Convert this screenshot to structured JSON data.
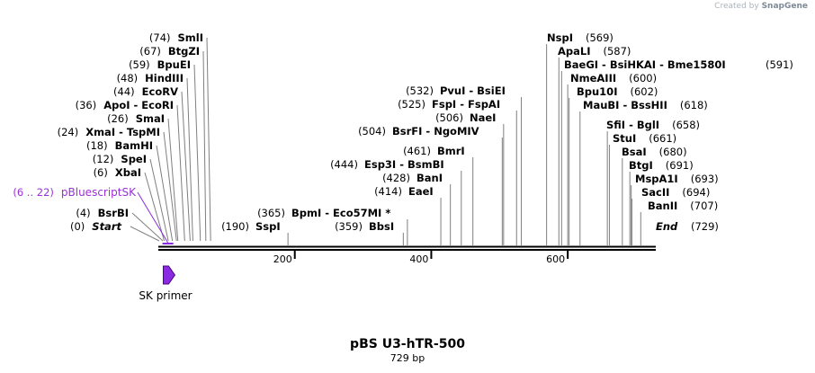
{
  "credit": {
    "prefix": "Created by",
    "brand": "SnapGene"
  },
  "plasmid": {
    "name": "pBS U3-hTR-500",
    "length_label": "729 bp",
    "length": 729
  },
  "colors": {
    "feature": "#8a2be2",
    "feature_label": "#9b30d9",
    "line": "#000000",
    "leader": "#7f7f7f"
  },
  "ticks": [
    {
      "pos": 200,
      "label": "200"
    },
    {
      "pos": 400,
      "label": "400"
    },
    {
      "pos": 600,
      "label": "600"
    }
  ],
  "left_sites": [
    {
      "pos": 0,
      "pos_label": "(0)",
      "name": "Start",
      "italic": true
    },
    {
      "pos": 4,
      "pos_label": "(4)",
      "name": "BsrBI"
    },
    {
      "pos": 6,
      "pos_label": "(6)",
      "name": "XbaI"
    },
    {
      "pos": 12,
      "pos_label": "(12)",
      "name": "SpeI"
    },
    {
      "pos": 18,
      "pos_label": "(18)",
      "name": "BamHI"
    },
    {
      "pos": 24,
      "pos_label": "(24)",
      "name": "XmaI  -  TspMI"
    },
    {
      "pos": 26,
      "pos_label": "(26)",
      "name": "SmaI"
    },
    {
      "pos": 36,
      "pos_label": "(36)",
      "name": "ApoI  -  EcoRI"
    },
    {
      "pos": 44,
      "pos_label": "(44)",
      "name": "EcoRV"
    },
    {
      "pos": 48,
      "pos_label": "(48)",
      "name": "HindIII"
    },
    {
      "pos": 59,
      "pos_label": "(59)",
      "name": "BpuEI"
    },
    {
      "pos": 67,
      "pos_label": "(67)",
      "name": "BtgZI"
    },
    {
      "pos": 74,
      "pos_label": "(74)",
      "name": "SmlI"
    }
  ],
  "feature_label": {
    "pos_label": "(6 .. 22)",
    "name": "pBluescriptSK",
    "start": 6,
    "end": 22
  },
  "primer": {
    "name": "SK primer",
    "start": 2,
    "end": 19
  },
  "mid_sites": [
    {
      "pos": 190,
      "pos_label": "(190)",
      "name": "SspI"
    },
    {
      "pos": 365,
      "pos_label": "(365)",
      "name": "BpmI  -  Eco57MI *"
    },
    {
      "pos": 359,
      "pos_label": "(359)",
      "name": "BbsI"
    },
    {
      "pos": 414,
      "pos_label": "(414)",
      "name": "EaeI"
    },
    {
      "pos": 428,
      "pos_label": "(428)",
      "name": "BanI"
    },
    {
      "pos": 444,
      "pos_label": "(444)",
      "name": "Esp3I  -  BsmBI"
    },
    {
      "pos": 461,
      "pos_label": "(461)",
      "name": "BmrI"
    },
    {
      "pos": 504,
      "pos_label": "(504)",
      "name": "BsrFI  -  NgoMIV"
    },
    {
      "pos": 506,
      "pos_label": "(506)",
      "name": "NaeI"
    },
    {
      "pos": 525,
      "pos_label": "(525)",
      "name": "FspI  -  FspAI"
    },
    {
      "pos": 532,
      "pos_label": "(532)",
      "name": "PvuI  -  BsiEI"
    }
  ],
  "right_sites": [
    {
      "pos": 569,
      "pos_label": "(569)",
      "name": "NspI"
    },
    {
      "pos": 587,
      "pos_label": "(587)",
      "name": "ApaLI"
    },
    {
      "pos": 591,
      "pos_label": "(591)",
      "name": "BaeGI  -  BsiHKAI  -  Bme1580I"
    },
    {
      "pos": 600,
      "pos_label": "(600)",
      "name": "NmeAIII"
    },
    {
      "pos": 602,
      "pos_label": "(602)",
      "name": "Bpu10I"
    },
    {
      "pos": 618,
      "pos_label": "(618)",
      "name": "MauBI  -  BssHII"
    },
    {
      "pos": 658,
      "pos_label": "(658)",
      "name": "SfiI  -  BglI"
    },
    {
      "pos": 661,
      "pos_label": "(661)",
      "name": "StuI"
    },
    {
      "pos": 680,
      "pos_label": "(680)",
      "name": "BsaI"
    },
    {
      "pos": 691,
      "pos_label": "(691)",
      "name": "BtgI"
    },
    {
      "pos": 693,
      "pos_label": "(693)",
      "name": "MspA1I"
    },
    {
      "pos": 694,
      "pos_label": "(694)",
      "name": "SacII"
    },
    {
      "pos": 707,
      "pos_label": "(707)",
      "name": "BanII"
    },
    {
      "pos": 729,
      "pos_label": "(729)",
      "name": "End",
      "italic": true
    }
  ]
}
